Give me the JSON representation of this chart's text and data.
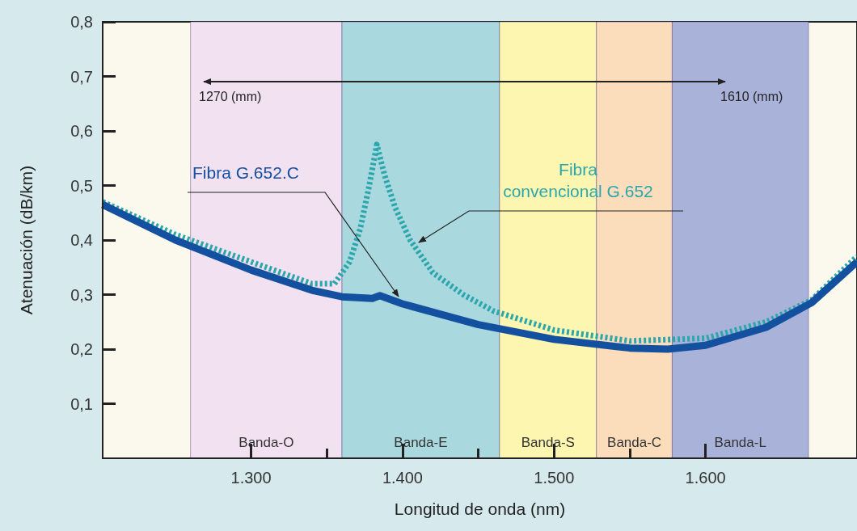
{
  "chart_data": {
    "type": "line",
    "xlabel": "Longitud de onda (nm)",
    "ylabel": "Atenuación (dB/km)",
    "xlim": [
      1202,
      1700
    ],
    "ylim": [
      0,
      0.8
    ],
    "xticks": [
      {
        "value": 1300,
        "label": "1.300"
      },
      {
        "value": 1350,
        "label": null
      },
      {
        "value": 1400,
        "label": "1.400"
      },
      {
        "value": 1450,
        "label": null
      },
      {
        "value": 1500,
        "label": "1.500"
      },
      {
        "value": 1550,
        "label": null
      },
      {
        "value": 1600,
        "label": "1.600"
      }
    ],
    "yticks": [
      {
        "value": 0.1,
        "label": "0,1"
      },
      {
        "value": 0.2,
        "label": "0,2"
      },
      {
        "value": 0.3,
        "label": "0,3"
      },
      {
        "value": 0.4,
        "label": "0,4"
      },
      {
        "value": 0.5,
        "label": "0,5"
      },
      {
        "value": 0.6,
        "label": "0,6"
      },
      {
        "value": 0.7,
        "label": "0,7"
      },
      {
        "value": 0.8,
        "label": "0,8"
      }
    ],
    "grid": false,
    "series": [
      {
        "name": "Fibra convencional G.652",
        "color": "#2ba6ad",
        "line_style": "dotted",
        "x": [
          1202,
          1250,
          1300,
          1340,
          1355,
          1365,
          1372,
          1378,
          1383,
          1388,
          1395,
          1405,
          1420,
          1440,
          1460,
          1500,
          1550,
          1600,
          1640,
          1670,
          1700
        ],
        "values": [
          0.47,
          0.41,
          0.36,
          0.32,
          0.32,
          0.36,
          0.42,
          0.5,
          0.575,
          0.52,
          0.46,
          0.4,
          0.34,
          0.3,
          0.27,
          0.235,
          0.215,
          0.22,
          0.25,
          0.29,
          0.37
        ]
      },
      {
        "name": "Fibra G.652.C",
        "color": "#1450a0",
        "line_style": "solid",
        "x": [
          1202,
          1250,
          1300,
          1340,
          1360,
          1380,
          1385,
          1400,
          1450,
          1500,
          1550,
          1575,
          1600,
          1640,
          1670,
          1700
        ],
        "values": [
          0.465,
          0.4,
          0.345,
          0.308,
          0.296,
          0.293,
          0.298,
          0.283,
          0.245,
          0.218,
          0.202,
          0.2,
          0.207,
          0.24,
          0.285,
          0.36
        ]
      }
    ],
    "bands": [
      {
        "axis": "x",
        "from": 1260,
        "to": 1360,
        "label": "Banda-O",
        "color": "#f2e1f1"
      },
      {
        "axis": "x",
        "from": 1360,
        "to": 1464,
        "label": "Banda-E",
        "color": "#a9d8de"
      },
      {
        "axis": "x",
        "from": 1464,
        "to": 1528,
        "label": "Banda-S",
        "color": "#fdf6b0"
      },
      {
        "axis": "x",
        "from": 1528,
        "to": 1578,
        "label": "Banda-C",
        "color": "#fbdcbb"
      },
      {
        "axis": "x",
        "from": 1578,
        "to": 1668,
        "label": "Banda-L",
        "color": "#a9b3da"
      }
    ],
    "annotations": [
      "1270 (mm)",
      "1610 (mm)"
    ]
  }
}
